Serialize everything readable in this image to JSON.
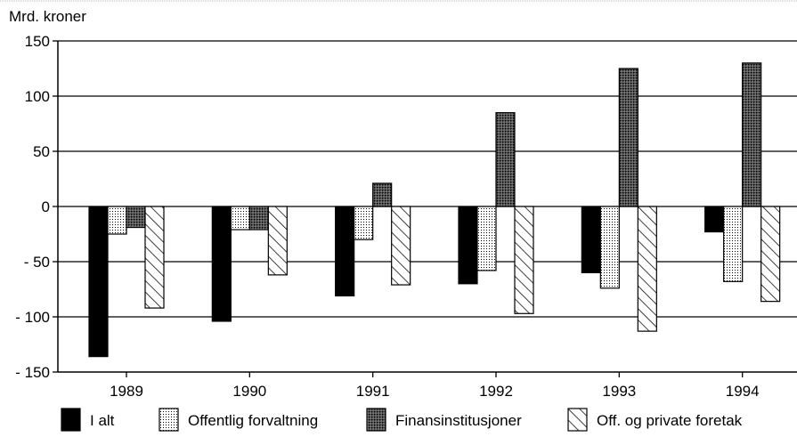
{
  "chart_data": {
    "type": "bar",
    "ylabel": "Mrd. kroner",
    "categories": [
      "1989",
      "1990",
      "1991",
      "1992",
      "1993",
      "1994"
    ],
    "series": [
      {
        "name": "I alt",
        "pattern": "solid-black",
        "values": [
          -136,
          -104,
          -81,
          -70,
          -60,
          -23
        ]
      },
      {
        "name": "Offentlig forvaltning",
        "pattern": "light-dots",
        "values": [
          -25,
          -21,
          -30,
          -58,
          -74,
          -68
        ]
      },
      {
        "name": "Finansinstitusjoner",
        "pattern": "dark-dots",
        "values": [
          -19,
          -21,
          21,
          85,
          125,
          130
        ]
      },
      {
        "name": "Off. og private foretak",
        "pattern": "diagonal-hatch",
        "values": [
          -92,
          -62,
          -71,
          -97,
          -113,
          -86
        ]
      }
    ],
    "ylim": [
      -150,
      150
    ],
    "yticks": [
      150,
      100,
      50,
      0,
      -50,
      -100,
      -150
    ],
    "ytick_labels": [
      "150",
      "100",
      "50",
      "0",
      "- 50",
      "- 100",
      "- 150"
    ],
    "grid": true,
    "legend_position": "bottom"
  }
}
